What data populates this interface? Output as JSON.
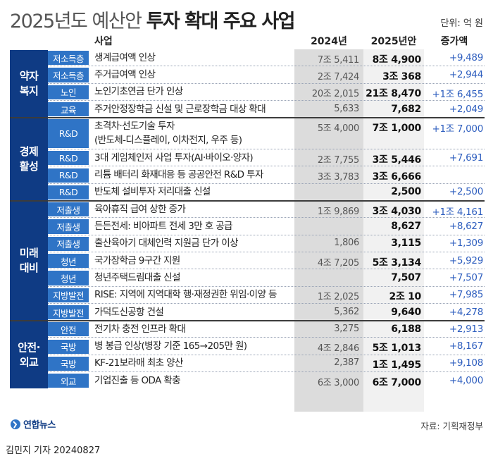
{
  "title": {
    "light": "2025년도 예산안",
    "bold": "투자 확대 주요 사업"
  },
  "unit": "단위: 억 원",
  "headers": {
    "item": "사업",
    "y2024": "2024년",
    "y2025": "2025년안",
    "increase": "증가액"
  },
  "groups": [
    {
      "label": "약자\n복지",
      "rows": [
        {
          "tag": "저소득층",
          "name": "생계급여액 인상",
          "y2024": "7조 5,411",
          "y2025": "8조 4,900",
          "increase": "+9,489"
        },
        {
          "tag": "저소득층",
          "name": "주거급여액 인상",
          "y2024": "2조 7,424",
          "y2025": "3조 368",
          "increase": "+2,944"
        },
        {
          "tag": "노인",
          "name": "노인기초연금 단가 인상",
          "y2024": "20조 2,015",
          "y2025": "21조 8,470",
          "increase": "+1조 6,455"
        },
        {
          "tag": "교육",
          "name": "주거안정장학금 신설 및 근로장학금 대상 확대",
          "y2024": "5,633",
          "y2025": "7,682",
          "increase": "+2,049"
        }
      ]
    },
    {
      "label": "경제\n활성",
      "rows": [
        {
          "tag": "R&D",
          "name": "초격차·선도기술 투자",
          "sub": "(반도체-디스플레이, 이차전지, 우주 등)",
          "y2024": "5조 4,000",
          "y2025": "7조 1,000",
          "increase": "+1조 7,000"
        },
        {
          "tag": "R&D",
          "name": "3대 게임체인저 사업 투자(AI·바이오·양자)",
          "y2024": "2조 7,755",
          "y2025": "3조 5,446",
          "increase": "+7,691"
        },
        {
          "tag": "R&D",
          "name": "리튬 배터리 화재대응 등 공공안전 R&D 투자",
          "y2024": "3조 3,783",
          "y2025": "3조 6,666",
          "increase": ""
        },
        {
          "tag": "R&D",
          "name": "반도체 설비투자 저리대출 신설",
          "y2024": "",
          "y2025": "2,500",
          "increase": "+2,500"
        }
      ]
    },
    {
      "label": "미래\n대비",
      "rows": [
        {
          "tag": "저출생",
          "name": "육아휴직 급여 상한 증가",
          "y2024": "1조 9,869",
          "y2025": "3조 4,030",
          "increase": "+1조 4,161"
        },
        {
          "tag": "저출생",
          "name": "든든전세: 비아파트 전세 3만 호 공급",
          "y2024": "",
          "y2025": "8,627",
          "increase": "+8,627"
        },
        {
          "tag": "저출생",
          "name": "출산육아기 대체인력 지원금 단가 이상",
          "y2024": "1,806",
          "y2025": "3,115",
          "increase": "+1,309"
        },
        {
          "tag": "청년",
          "name": "국가장학금 9구간 지원",
          "y2024": "4조 7,205",
          "y2025": "5조 3,134",
          "increase": "+5,929"
        },
        {
          "tag": "청년",
          "name": "청년주택드림대출 신설",
          "y2024": "",
          "y2025": "7,507",
          "increase": "+7,507"
        },
        {
          "tag": "지방발전",
          "name": "RISE: 지역에 지역대학 행·재정권한 위임·이양 등",
          "y2024": "1조 2,025",
          "y2025": "2조 10",
          "increase": "+7,985"
        },
        {
          "tag": "지방발전",
          "name": "가덕도신공항 건설",
          "y2024": "5,362",
          "y2025": "9,640",
          "increase": "+4,278"
        }
      ]
    },
    {
      "label": "안전·\n외교",
      "rows": [
        {
          "tag": "안전",
          "name": "전기차 충전 인프라 확대",
          "y2024": "3,275",
          "y2025": "6,188",
          "increase": "+2,913"
        },
        {
          "tag": "국방",
          "name": "병 봉급 인상(병장 기준 165→205만 원)",
          "y2024": "4조 2,846",
          "y2025": "5조 1,013",
          "increase": "+8,167"
        },
        {
          "tag": "국방",
          "name": "KF-21보라매 최초 양산",
          "y2024": "2,387",
          "y2025": "1조 1,495",
          "increase": "+9,108"
        },
        {
          "tag": "외교",
          "name": "기업진출 등 ODA 확충",
          "y2024": "6조 3,000",
          "y2025": "6조 7,000",
          "increase": "+4,000"
        }
      ]
    }
  ],
  "footer": {
    "logo": "연합뉴스",
    "source": "자료: 기획재정부",
    "credit": "김민지 기자  20240827"
  },
  "colors": {
    "group": "#0f3b84",
    "tag": "#2f74c6",
    "increase": "#2f5fbf"
  }
}
